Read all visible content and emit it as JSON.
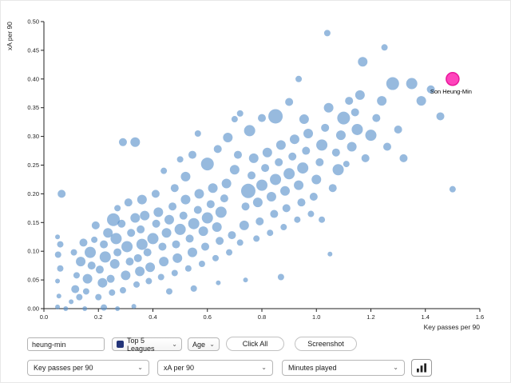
{
  "chart_data": {
    "type": "scatter",
    "title": "",
    "xlabel": "Key passes per 90",
    "ylabel": "xA per 90",
    "xlim": [
      0,
      1.6
    ],
    "ylim": [
      0,
      0.5
    ],
    "grid": false,
    "x_ticks": [
      "0.0",
      "0.2",
      "0.4",
      "0.6",
      "0.8",
      "1.0",
      "1.2",
      "1.4",
      "1.6"
    ],
    "y_ticks": [
      "0.00",
      "0.05",
      "0.10",
      "0.15",
      "0.20",
      "0.25",
      "0.30",
      "0.35",
      "0.40",
      "0.45",
      "0.50"
    ],
    "highlight": {
      "label": "Son Heung-Min",
      "x": 1.5,
      "y": 0.4,
      "r": 8
    },
    "points": [
      [
        0.05,
        0.003,
        3
      ],
      [
        0.055,
        0.022,
        3
      ],
      [
        0.05,
        0.048,
        3
      ],
      [
        0.06,
        0.07,
        4
      ],
      [
        0.052,
        0.094,
        4
      ],
      [
        0.06,
        0.112,
        4
      ],
      [
        0.05,
        0.125,
        3
      ],
      [
        0.065,
        0.2,
        5
      ],
      [
        0.08,
        0.0,
        3
      ],
      [
        0.1,
        0.012,
        3
      ],
      [
        0.115,
        0.034,
        5
      ],
      [
        0.13,
        0.02,
        4
      ],
      [
        0.12,
        0.058,
        4
      ],
      [
        0.135,
        0.082,
        6
      ],
      [
        0.11,
        0.098,
        4
      ],
      [
        0.145,
        0.115,
        5
      ],
      [
        0.155,
        0.03,
        4
      ],
      [
        0.16,
        0.052,
        6
      ],
      [
        0.175,
        0.075,
        5
      ],
      [
        0.17,
        0.098,
        7
      ],
      [
        0.185,
        0.12,
        4
      ],
      [
        0.19,
        0.145,
        5
      ],
      [
        0.15,
        0.0,
        3
      ],
      [
        0.2,
        0.02,
        4
      ],
      [
        0.215,
        0.045,
        6
      ],
      [
        0.205,
        0.068,
        5
      ],
      [
        0.225,
        0.09,
        7
      ],
      [
        0.22,
        0.112,
        5
      ],
      [
        0.235,
        0.132,
        6
      ],
      [
        0.22,
        0.002,
        4
      ],
      [
        0.25,
        0.028,
        4
      ],
      [
        0.245,
        0.052,
        5
      ],
      [
        0.255,
        0.155,
        8
      ],
      [
        0.27,
        0.0,
        3
      ],
      [
        0.26,
        0.078,
        6
      ],
      [
        0.27,
        0.098,
        5
      ],
      [
        0.265,
        0.122,
        7
      ],
      [
        0.285,
        0.148,
        5
      ],
      [
        0.29,
        0.032,
        4
      ],
      [
        0.3,
        0.058,
        6
      ],
      [
        0.315,
        0.082,
        5
      ],
      [
        0.305,
        0.108,
        7
      ],
      [
        0.32,
        0.132,
        5
      ],
      [
        0.335,
        0.158,
        6
      ],
      [
        0.33,
        0.004,
        3
      ],
      [
        0.34,
        0.042,
        4
      ],
      [
        0.352,
        0.065,
        6
      ],
      [
        0.345,
        0.088,
        5
      ],
      [
        0.36,
        0.112,
        7
      ],
      [
        0.355,
        0.138,
        5
      ],
      [
        0.37,
        0.162,
        6
      ],
      [
        0.385,
        0.048,
        4
      ],
      [
        0.39,
        0.072,
        6
      ],
      [
        0.38,
        0.098,
        5
      ],
      [
        0.4,
        0.122,
        7
      ],
      [
        0.412,
        0.148,
        5
      ],
      [
        0.42,
        0.168,
        6
      ],
      [
        0.43,
        0.055,
        4
      ],
      [
        0.44,
        0.082,
        6
      ],
      [
        0.435,
        0.108,
        5
      ],
      [
        0.45,
        0.132,
        6
      ],
      [
        0.29,
        0.29,
        5
      ],
      [
        0.335,
        0.29,
        6
      ],
      [
        0.31,
        0.185,
        5
      ],
      [
        0.27,
        0.175,
        4
      ],
      [
        0.36,
        0.19,
        6
      ],
      [
        0.41,
        0.2,
        5
      ],
      [
        0.46,
        0.03,
        4
      ],
      [
        0.55,
        0.035,
        4
      ],
      [
        0.64,
        0.045,
        3
      ],
      [
        0.46,
        0.155,
        6
      ],
      [
        0.472,
        0.178,
        5
      ],
      [
        0.48,
        0.062,
        4
      ],
      [
        0.49,
        0.088,
        6
      ],
      [
        0.485,
        0.112,
        5
      ],
      [
        0.5,
        0.138,
        7
      ],
      [
        0.512,
        0.162,
        5
      ],
      [
        0.52,
        0.19,
        6
      ],
      [
        0.53,
        0.07,
        4
      ],
      [
        0.545,
        0.098,
        6
      ],
      [
        0.535,
        0.122,
        5
      ],
      [
        0.55,
        0.148,
        7
      ],
      [
        0.565,
        0.172,
        5
      ],
      [
        0.57,
        0.2,
        6
      ],
      [
        0.58,
        0.078,
        4
      ],
      [
        0.592,
        0.108,
        5
      ],
      [
        0.585,
        0.135,
        6
      ],
      [
        0.6,
        0.158,
        7
      ],
      [
        0.612,
        0.182,
        5
      ],
      [
        0.62,
        0.21,
        6
      ],
      [
        0.63,
        0.088,
        4
      ],
      [
        0.645,
        0.118,
        5
      ],
      [
        0.635,
        0.142,
        6
      ],
      [
        0.65,
        0.168,
        7
      ],
      [
        0.662,
        0.192,
        5
      ],
      [
        0.67,
        0.218,
        6
      ],
      [
        0.68,
        0.098,
        4
      ],
      [
        0.69,
        0.128,
        5
      ],
      [
        0.545,
        0.268,
        5
      ],
      [
        0.6,
        0.252,
        8
      ],
      [
        0.638,
        0.278,
        5
      ],
      [
        0.675,
        0.298,
        6
      ],
      [
        0.565,
        0.305,
        4
      ],
      [
        0.7,
        0.33,
        4
      ],
      [
        0.72,
        0.34,
        4
      ],
      [
        0.52,
        0.23,
        6
      ],
      [
        0.48,
        0.21,
        5
      ],
      [
        0.44,
        0.24,
        4
      ],
      [
        0.5,
        0.26,
        4
      ],
      [
        0.7,
        0.242,
        6
      ],
      [
        0.712,
        0.268,
        5
      ],
      [
        0.72,
        0.115,
        4
      ],
      [
        0.735,
        0.145,
        6
      ],
      [
        0.74,
        0.178,
        5
      ],
      [
        0.75,
        0.205,
        9
      ],
      [
        0.762,
        0.232,
        5
      ],
      [
        0.77,
        0.262,
        6
      ],
      [
        0.78,
        0.122,
        4
      ],
      [
        0.792,
        0.152,
        5
      ],
      [
        0.785,
        0.185,
        6
      ],
      [
        0.8,
        0.215,
        7
      ],
      [
        0.812,
        0.245,
        5
      ],
      [
        0.82,
        0.272,
        6
      ],
      [
        0.83,
        0.132,
        4
      ],
      [
        0.845,
        0.165,
        5
      ],
      [
        0.835,
        0.195,
        6
      ],
      [
        0.85,
        0.225,
        7
      ],
      [
        0.862,
        0.255,
        5
      ],
      [
        0.87,
        0.285,
        6
      ],
      [
        0.88,
        0.142,
        4
      ],
      [
        0.89,
        0.175,
        5
      ],
      [
        0.885,
        0.205,
        6
      ],
      [
        0.9,
        0.235,
        7
      ],
      [
        0.912,
        0.265,
        5
      ],
      [
        0.92,
        0.295,
        6
      ],
      [
        0.93,
        0.155,
        4
      ],
      [
        0.945,
        0.185,
        5
      ],
      [
        0.935,
        0.215,
        6
      ],
      [
        0.95,
        0.245,
        7
      ],
      [
        0.962,
        0.275,
        5
      ],
      [
        0.97,
        0.305,
        6
      ],
      [
        0.98,
        0.165,
        4
      ],
      [
        0.99,
        0.195,
        5
      ],
      [
        0.755,
        0.31,
        7
      ],
      [
        0.8,
        0.332,
        5
      ],
      [
        0.85,
        0.335,
        9
      ],
      [
        0.9,
        0.36,
        5
      ],
      [
        0.955,
        0.33,
        6
      ],
      [
        0.87,
        0.055,
        4
      ],
      [
        0.935,
        0.4,
        4
      ],
      [
        0.74,
        0.05,
        3
      ],
      [
        1.0,
        0.225,
        6
      ],
      [
        1.012,
        0.255,
        5
      ],
      [
        1.02,
        0.285,
        7
      ],
      [
        1.032,
        0.315,
        5
      ],
      [
        1.04,
        0.48,
        4
      ],
      [
        1.045,
        0.35,
        6
      ],
      [
        1.06,
        0.21,
        5
      ],
      [
        1.08,
        0.242,
        7
      ],
      [
        1.072,
        0.272,
        5
      ],
      [
        1.09,
        0.302,
        6
      ],
      [
        1.1,
        0.332,
        8
      ],
      [
        1.12,
        0.362,
        5
      ],
      [
        1.11,
        0.252,
        4
      ],
      [
        1.13,
        0.282,
        6
      ],
      [
        1.15,
        0.312,
        7
      ],
      [
        1.142,
        0.342,
        5
      ],
      [
        1.16,
        0.372,
        6
      ],
      [
        1.18,
        0.262,
        5
      ],
      [
        1.17,
        0.43,
        6
      ],
      [
        1.2,
        0.302,
        7
      ],
      [
        1.22,
        0.332,
        5
      ],
      [
        1.25,
        0.455,
        4
      ],
      [
        1.24,
        0.362,
        6
      ],
      [
        1.26,
        0.282,
        5
      ],
      [
        1.28,
        0.392,
        8
      ],
      [
        1.3,
        0.312,
        5
      ],
      [
        1.35,
        0.392,
        7
      ],
      [
        1.385,
        0.362,
        6
      ],
      [
        1.42,
        0.382,
        5
      ],
      [
        1.5,
        0.208,
        4
      ],
      [
        1.32,
        0.262,
        5
      ],
      [
        1.455,
        0.335,
        5
      ],
      [
        1.02,
        0.155,
        4
      ],
      [
        1.05,
        0.095,
        3
      ]
    ]
  },
  "colors": {
    "point": "#5790c9",
    "point_opacity": 0.62,
    "highlight_fill": "#ff44bc",
    "highlight_stroke": "#e8169b",
    "axis": "#222222"
  },
  "controls": {
    "search": {
      "value": "heung-min"
    },
    "league_filter": {
      "label": "Top 5 Leagues"
    },
    "age_filter": {
      "label": "Age"
    },
    "click_all": {
      "label": "Click All"
    },
    "screenshot": {
      "label": "Screenshot"
    },
    "x_metric": {
      "label": "Key passes per 90"
    },
    "y_metric": {
      "label": "xA per 90"
    },
    "size_metric": {
      "label": "Minutes played"
    }
  }
}
